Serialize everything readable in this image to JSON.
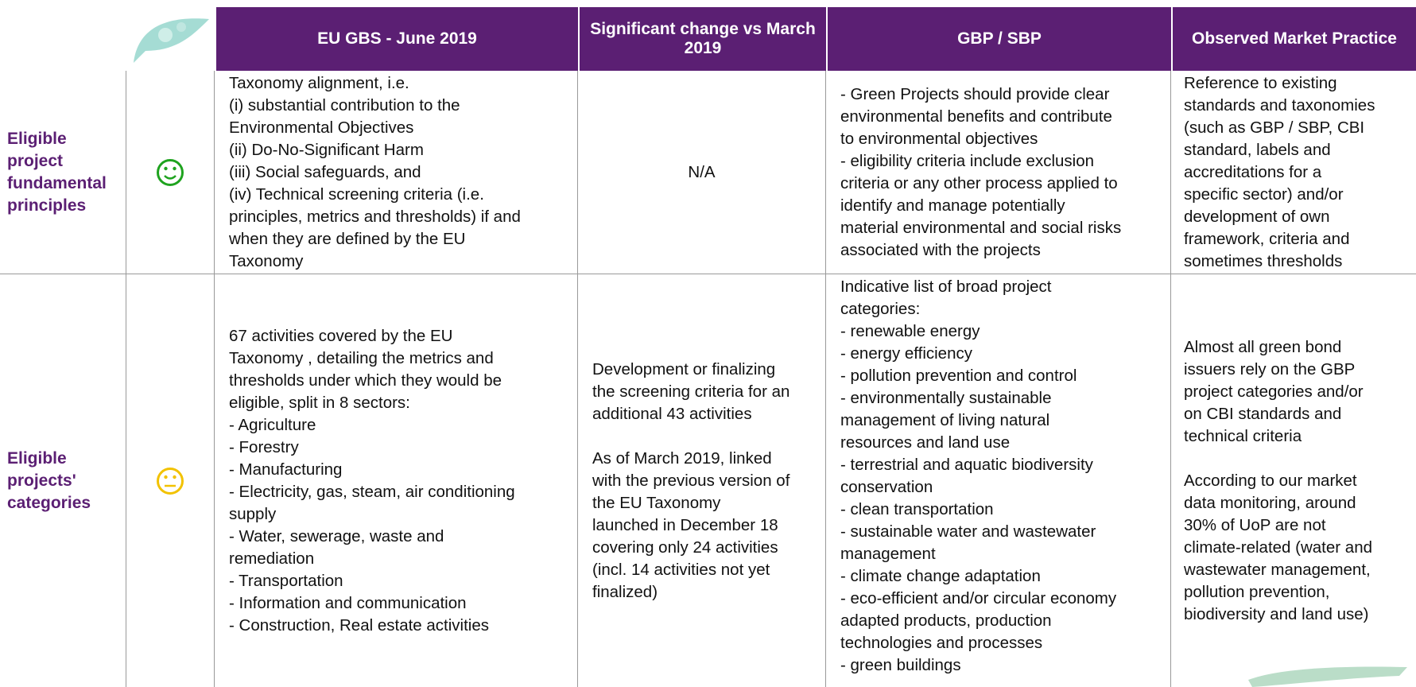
{
  "header": {
    "columns": [
      "EU GBS - June 2019",
      "Significant change vs March 2019",
      "GBP / SBP",
      "Observed Market Practice"
    ]
  },
  "rows": [
    {
      "label": [
        "Eligible",
        "project",
        "fundamental",
        "principles"
      ],
      "cells": [
        [
          [
            "Taxonomy alignment, i.e.",
            "(i) substantial contribution to the",
            "Environmental Objectives",
            "(ii) Do-No-Significant Harm",
            "(iii) Social safeguards, and",
            "(iv) Technical screening criteria (i.e.",
            "principles, metrics and thresholds) if and",
            "when they are defined by the EU",
            "Taxonomy"
          ]
        ],
        [
          [
            "N/A"
          ]
        ],
        [
          [
            "- Green Projects should provide clear",
            "environmental benefits and contribute",
            "to environmental objectives",
            "- eligibility criteria include exclusion",
            "criteria or any other process applied to",
            "identify and manage potentially",
            "material environmental and social risks",
            "associated with the projects"
          ]
        ],
        [
          [
            "Reference to existing",
            "standards and taxonomies",
            "(such as GBP / SBP, CBI",
            "standard, labels and",
            "accreditations for a",
            "specific sector) and/or",
            "development of own",
            "framework, criteria and",
            "sometimes thresholds"
          ]
        ]
      ]
    },
    {
      "label": [
        "Eligible",
        "projects'",
        "categories"
      ],
      "cells": [
        [
          [
            "67 activities covered by the EU",
            "Taxonomy , detailing the metrics and",
            "thresholds under which they would be",
            "eligible, split in 8 sectors:",
            "- Agriculture",
            "- Forestry",
            "- Manufacturing",
            "- Electricity, gas, steam, air conditioning",
            "supply",
            "- Water, sewerage, waste and",
            "remediation",
            "- Transportation",
            "- Information and communication",
            "- Construction, Real estate activities"
          ]
        ],
        [
          [
            "Development or finalizing",
            "the screening criteria for an",
            "additional 43 activities"
          ],
          [
            "As of March 2019, linked",
            "with the previous version of",
            "the EU Taxonomy",
            "launched in December 18",
            "covering only 24 activities",
            "(incl. 14 activities not yet",
            "finalized)"
          ]
        ],
        [
          [
            "Indicative list of broad project",
            "categories:",
            "- renewable energy",
            "- energy efficiency",
            "- pollution prevention and control",
            "- environmentally sustainable",
            "management of living natural",
            "resources and land use",
            "- terrestrial and aquatic biodiversity",
            "conservation",
            "- clean transportation",
            "- sustainable water and wastewater",
            "management",
            "- climate change adaptation",
            "- eco-efficient and/or circular economy",
            "adapted products, production",
            "technologies and processes",
            "- green buildings"
          ]
        ],
        [
          [
            "Almost all green bond",
            "issuers rely on the GBP",
            "project categories and/or",
            "on CBI standards and",
            "technical criteria"
          ],
          [
            "According to our market",
            "data monitoring, around",
            "30% of UoP are not",
            "climate-related (water and",
            "wastewater management,",
            "pollution prevention,",
            "biodiversity and land use)"
          ]
        ]
      ]
    }
  ]
}
